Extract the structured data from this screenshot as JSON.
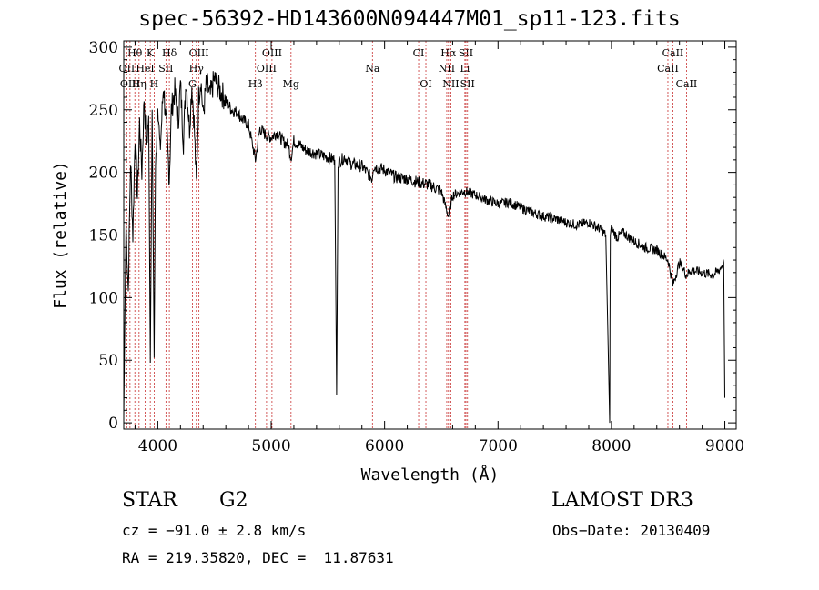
{
  "chart_data": {
    "type": "line",
    "title": "spec-56392-HD143600N094447M01_sp11-123.fits",
    "xlabel": "Wavelength (Å)",
    "ylabel": "Flux (relative)",
    "xlim": [
      3700,
      9100
    ],
    "ylim": [
      -5,
      305
    ],
    "xticks": [
      4000,
      5000,
      6000,
      7000,
      8000,
      9000
    ],
    "yticks": [
      0,
      50,
      100,
      150,
      200,
      250,
      300
    ],
    "series": [
      {
        "name": "spectrum",
        "x": [
          3700,
          3720,
          3740,
          3760,
          3780,
          3800,
          3820,
          3840,
          3860,
          3880,
          3900,
          3920,
          3934,
          3950,
          3968,
          3980,
          4000,
          4020,
          4050,
          4080,
          4102,
          4120,
          4150,
          4180,
          4200,
          4226,
          4250,
          4280,
          4300,
          4320,
          4340,
          4360,
          4380,
          4400,
          4430,
          4460,
          4500,
          4550,
          4600,
          4650,
          4700,
          4750,
          4800,
          4861,
          4900,
          4950,
          5000,
          5050,
          5100,
          5150,
          5175,
          5200,
          5250,
          5300,
          5400,
          5500,
          5560,
          5577,
          5590,
          5650,
          5700,
          5800,
          5890,
          5900,
          6000,
          6100,
          6200,
          6300,
          6400,
          6500,
          6563,
          6600,
          6700,
          6800,
          6900,
          7000,
          7100,
          7200,
          7300,
          7400,
          7500,
          7600,
          7700,
          7800,
          7900,
          7950,
          7985,
          7990,
          8000,
          8050,
          8100,
          8200,
          8300,
          8400,
          8500,
          8542,
          8600,
          8662,
          8700,
          8800,
          8900,
          8950,
          8990,
          9000
        ],
        "y": [
          5,
          160,
          105,
          210,
          150,
          230,
          180,
          240,
          200,
          260,
          220,
          245,
          48,
          250,
          52,
          200,
          260,
          215,
          270,
          230,
          195,
          250,
          265,
          240,
          270,
          225,
          275,
          235,
          270,
          240,
          190,
          260,
          275,
          245,
          272,
          260,
          275,
          265,
          258,
          250,
          248,
          242,
          238,
          210,
          235,
          230,
          228,
          232,
          225,
          222,
          212,
          225,
          222,
          218,
          215,
          212,
          210,
          22,
          208,
          212,
          207,
          205,
          195,
          205,
          202,
          196,
          195,
          192,
          190,
          185,
          165,
          182,
          185,
          182,
          178,
          175,
          176,
          172,
          168,
          165,
          163,
          160,
          158,
          160,
          155,
          150,
          0,
          150,
          155,
          148,
          152,
          145,
          140,
          138,
          130,
          110,
          128,
          118,
          122,
          120,
          118,
          122,
          128,
          20
        ]
      }
    ],
    "lines_top": [
      {
        "label": "Hθ",
        "wl": 3798
      },
      {
        "label": "K",
        "wl": 3934
      },
      {
        "label": "Hδ",
        "wl": 4102
      },
      {
        "label": "OIII",
        "wl": 4363
      },
      {
        "label": "OIII",
        "wl": 5007
      },
      {
        "label": "CI",
        "wl": 6300
      },
      {
        "label": "Hα",
        "wl": 6563
      },
      {
        "label": "SII",
        "wl": 6717
      },
      {
        "label": "CaII",
        "wl": 8542
      }
    ],
    "lines_mid": [
      {
        "label": "OII",
        "wl": 3727
      },
      {
        "label": "HeI",
        "wl": 3889
      },
      {
        "label": "SII",
        "wl": 4072
      },
      {
        "label": "Hγ",
        "wl": 4340
      },
      {
        "label": "OIII",
        "wl": 4959
      },
      {
        "label": "Na",
        "wl": 5893
      },
      {
        "label": "NII",
        "wl": 6548
      },
      {
        "label": "Li",
        "wl": 6708
      },
      {
        "label": "CaII",
        "wl": 8498
      }
    ],
    "lines_low": [
      {
        "label": "OIII",
        "wl": 3755
      },
      {
        "label": "Hη",
        "wl": 3835
      },
      {
        "label": "H",
        "wl": 3968
      },
      {
        "label": "G",
        "wl": 4305
      },
      {
        "label": "Hβ",
        "wl": 4861
      },
      {
        "label": "Mg",
        "wl": 5175
      },
      {
        "label": "OI",
        "wl": 6364
      },
      {
        "label": "NII",
        "wl": 6584
      },
      {
        "label": "SII",
        "wl": 6731
      },
      {
        "label": "CaII",
        "wl": 8662
      }
    ]
  },
  "info": {
    "class": "STAR",
    "subclass": "G2",
    "survey": "LAMOST DR3",
    "redshift": "cz = −91.0 ± 2.8 km/s",
    "obs_date": "Obs−Date: 20130409",
    "coords": "RA = 219.35820, DEC =  11.87631"
  }
}
